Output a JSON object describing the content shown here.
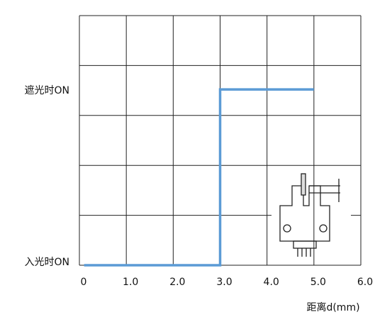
{
  "chart_data": {
    "type": "line",
    "x": [
      0.1,
      3.0,
      3.0,
      5.0
    ],
    "values": [
      0,
      0,
      1,
      1
    ],
    "color": "#5b9bd5",
    "xlim": [
      0,
      6
    ],
    "xticks": [
      0,
      {
        "value": 1,
        "label": "1.0"
      },
      {
        "value": 2,
        "label": "2.0"
      },
      {
        "value": 3,
        "label": "3.0"
      },
      {
        "value": 4,
        "label": "4.0"
      },
      {
        "value": 5,
        "label": "5.0"
      },
      {
        "value": 6,
        "label": "6.0"
      }
    ],
    "ylim": [
      0,
      1.42
    ],
    "yticks": [
      {
        "value": 0,
        "label": "入光时ON"
      },
      {
        "value": 1,
        "label": "遮光时ON"
      }
    ],
    "x_label": "距离d(mm)",
    "grid": true
  }
}
